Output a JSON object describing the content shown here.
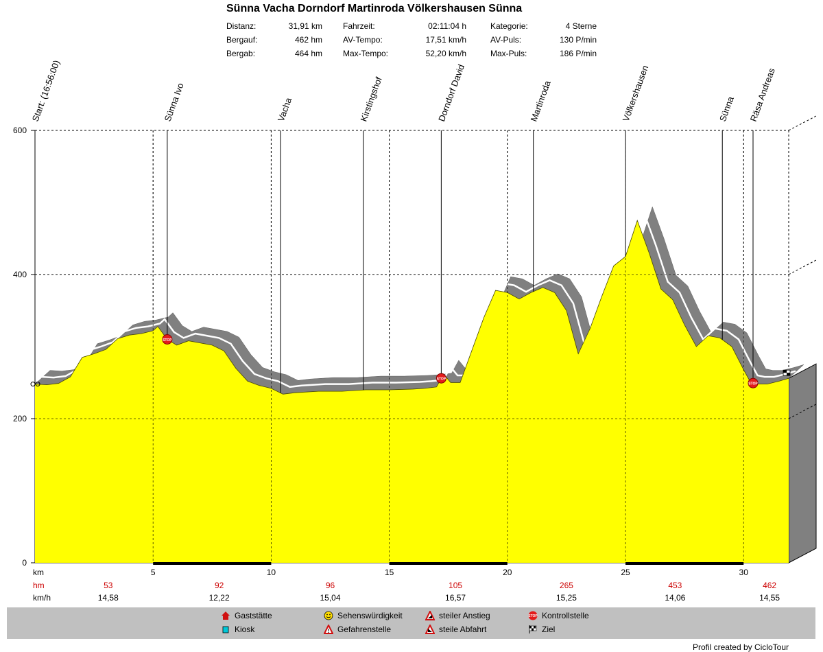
{
  "title": "Sünna Vacha Dorndorf Martinroda Völkershausen Sünna",
  "stats": [
    {
      "label": "Distanz:",
      "value": "31,91 km"
    },
    {
      "label": "Bergauf:",
      "value": "462 hm"
    },
    {
      "label": "Bergab:",
      "value": "464 hm"
    },
    {
      "label": "Fahrzeit:",
      "value": "02:11:04 h"
    },
    {
      "label": "AV-Tempo:",
      "value": "17,51 km/h"
    },
    {
      "label": "Max-Tempo:",
      "value": "52,20 km/h"
    },
    {
      "label": "Kategorie:",
      "value": "4 Sterne"
    },
    {
      "label": "AV-Puls:",
      "value": "130 P/min"
    },
    {
      "label": "Max-Puls:",
      "value": "186 P/min"
    }
  ],
  "chart_data": {
    "type": "area",
    "xlabel": "km",
    "ylabel": "",
    "xlim": [
      0,
      31.91
    ],
    "ylim": [
      0,
      600
    ],
    "y_ticks": [
      0,
      200,
      400,
      600
    ],
    "x_ticks": [
      5,
      10,
      15,
      20,
      25,
      30
    ],
    "grid": true,
    "x": [
      0,
      0.5,
      1,
      1.5,
      2,
      2.5,
      3,
      3.5,
      4,
      4.5,
      5,
      5.2,
      5.6,
      6,
      6.5,
      7,
      7.5,
      8,
      8.5,
      9,
      9.5,
      10,
      10.5,
      11,
      12,
      13,
      14,
      15,
      16,
      16.5,
      17,
      17.3,
      17.6,
      18,
      18.5,
      19,
      19.5,
      20,
      20.5,
      21,
      21.5,
      22,
      22.5,
      23,
      23.5,
      24,
      24.5,
      25,
      25.5,
      26,
      26.5,
      27,
      27.5,
      28,
      28.5,
      29,
      29.5,
      30,
      30.3,
      30.6,
      31,
      31.5,
      31.91
    ],
    "elevation": [
      248,
      247,
      249,
      258,
      285,
      290,
      296,
      311,
      316,
      318,
      322,
      328,
      310,
      302,
      308,
      305,
      302,
      294,
      270,
      252,
      246,
      242,
      234,
      236,
      238,
      238,
      240,
      240,
      241,
      242,
      244,
      262,
      250,
      250,
      295,
      340,
      378,
      375,
      366,
      375,
      382,
      375,
      350,
      290,
      325,
      370,
      412,
      425,
      475,
      430,
      380,
      365,
      330,
      300,
      315,
      312,
      300,
      268,
      250,
      248,
      248,
      252,
      256
    ],
    "rows": [
      {
        "label": "hm",
        "values": [
          "53",
          "92",
          "96",
          "105",
          "265",
          "453",
          "462"
        ]
      },
      {
        "label": "km/h",
        "values": [
          "14,58",
          "12,22",
          "15,04",
          "16,57",
          "15,25",
          "14,06",
          "14,55"
        ]
      }
    ],
    "row_positions_km": [
      3.1,
      7.8,
      12.5,
      17.8,
      22.5,
      27.1,
      31.1
    ],
    "waypoints": [
      {
        "name": "Start: (16:56:00)",
        "km": 0
      },
      {
        "name": "Sünna Ivo",
        "km": 5.6
      },
      {
        "name": "Vacha",
        "km": 10.4
      },
      {
        "name": "Kirstingshof",
        "km": 13.9
      },
      {
        "name": "Dorndorf David",
        "km": 17.2
      },
      {
        "name": "Martinroda",
        "km": 21.1
      },
      {
        "name": "Völkershausen",
        "km": 25.0
      },
      {
        "name": "Sünna",
        "km": 29.1
      },
      {
        "name": "Räsa Andreas",
        "km": 30.4
      }
    ],
    "stop_markers_km": [
      5.6,
      17.2,
      30.4
    ],
    "fill_color": "#ffff00",
    "band_color": "#808080",
    "road_color": "#ffffff",
    "stop_color": "#e31c1c"
  },
  "legend": [
    {
      "icon": "house-icon",
      "label": "Gaststätte"
    },
    {
      "icon": "kiosk-icon",
      "label": "Kiosk"
    },
    {
      "icon": "smiley-icon",
      "label": "Sehenswürdigkeit"
    },
    {
      "icon": "warning-icon",
      "label": "Gefahrenstelle"
    },
    {
      "icon": "steep-up-icon",
      "label": "steiler Anstieg"
    },
    {
      "icon": "steep-down-icon",
      "label": "steile Abfahrt"
    },
    {
      "icon": "stop-icon",
      "label": "Kontrollstelle"
    },
    {
      "icon": "flag-icon",
      "label": "Ziel"
    }
  ],
  "footer": "Profil created by CicloTour"
}
